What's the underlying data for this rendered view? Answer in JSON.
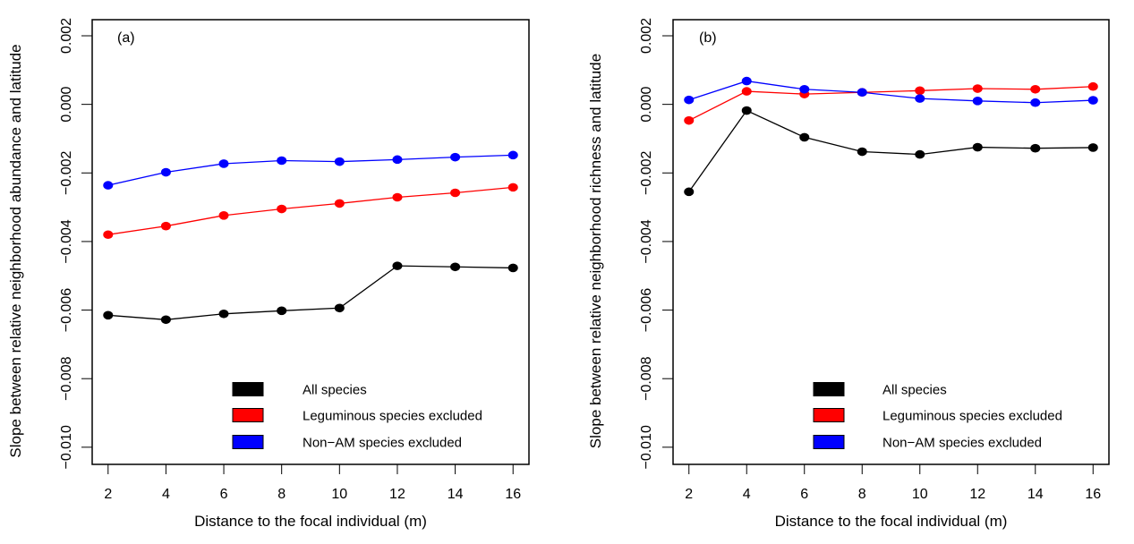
{
  "chart_data": [
    {
      "type": "line",
      "panel_label": "(a)",
      "title": "",
      "xlabel": "Distance to the focal individual (m)",
      "ylabel": "Slope between relative neighborhood abundance and latitude",
      "x": [
        2,
        4,
        6,
        8,
        10,
        12,
        14,
        16
      ],
      "x_ticks": [
        "2",
        "4",
        "6",
        "8",
        "10",
        "12",
        "14",
        "16"
      ],
      "y_ticks": [
        0.002,
        0.0,
        -0.002,
        -0.004,
        -0.006,
        -0.008,
        -0.01
      ],
      "y_tick_labels": [
        "0.002",
        "0.000",
        "−0.002",
        "−0.004",
        "−0.006",
        "−0.008",
        "−0.010"
      ],
      "xlim": [
        1.45,
        16.55
      ],
      "ylim": [
        -0.0105,
        0.00247
      ],
      "grid": false,
      "legend_position": "bottom-right",
      "series": [
        {
          "name": "All species",
          "color": "#000000",
          "values": [
            -0.00615,
            -0.00628,
            -0.00611,
            -0.00602,
            -0.00594,
            -0.00471,
            -0.00474,
            -0.00477
          ]
        },
        {
          "name": "Leguminous species excluded",
          "color": "#ff0000",
          "values": [
            -0.0038,
            -0.00355,
            -0.00324,
            -0.00305,
            -0.00289,
            -0.00271,
            -0.00258,
            -0.00242
          ]
        },
        {
          "name": "Non−AM species excluded",
          "color": "#0000ff",
          "values": [
            -0.00236,
            -0.00198,
            -0.00173,
            -0.00164,
            -0.00167,
            -0.00161,
            -0.00154,
            -0.00148
          ]
        }
      ]
    },
    {
      "type": "line",
      "panel_label": "(b)",
      "title": "",
      "xlabel": "Distance to the focal individual (m)",
      "ylabel": "Slope between relative neighborhood richness and latitude",
      "x": [
        2,
        4,
        6,
        8,
        10,
        12,
        14,
        16
      ],
      "x_ticks": [
        "2",
        "4",
        "6",
        "8",
        "10",
        "12",
        "14",
        "16"
      ],
      "y_ticks": [
        0.002,
        0.0,
        -0.002,
        -0.004,
        -0.006,
        -0.008,
        -0.01
      ],
      "y_tick_labels": [
        "0.002",
        "0.000",
        "−0.002",
        "−0.004",
        "−0.006",
        "−0.008",
        "−0.010"
      ],
      "xlim": [
        1.45,
        16.55
      ],
      "ylim": [
        -0.0105,
        0.00247
      ],
      "grid": false,
      "legend_position": "bottom-right",
      "series": [
        {
          "name": "All species",
          "color": "#000000",
          "values": [
            -0.00255,
            -0.00018,
            -0.00096,
            -0.00138,
            -0.00146,
            -0.00125,
            -0.00128,
            -0.00126
          ]
        },
        {
          "name": "Leguminous species excluded",
          "color": "#ff0000",
          "values": [
            -0.00047,
            0.00038,
            0.0003,
            0.00035,
            0.0004,
            0.00046,
            0.00044,
            0.00052
          ]
        },
        {
          "name": "Non−AM species excluded",
          "color": "#0000ff",
          "values": [
            0.00013,
            0.00068,
            0.00044,
            0.00035,
            0.00017,
            0.0001,
            5e-05,
            0.00012
          ]
        }
      ]
    }
  ]
}
